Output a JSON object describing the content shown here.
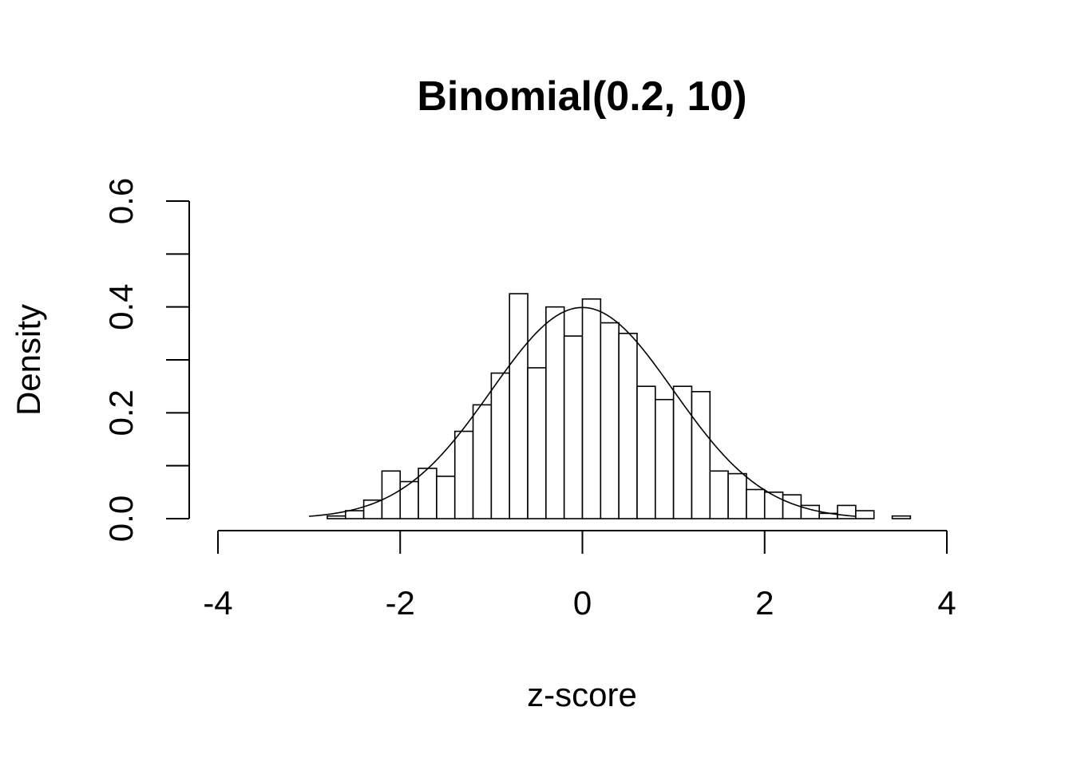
{
  "chart_data": {
    "type": "bar",
    "title": "Binomial(0.2, 10)",
    "xlabel": "z-score",
    "ylabel": "Density",
    "xlim": [
      -4,
      4
    ],
    "ylim": [
      0,
      0.6
    ],
    "x_ticks": [
      -4,
      -2,
      0,
      2,
      4
    ],
    "x_tick_labels": [
      "-4",
      "-2",
      "0",
      "2",
      "4"
    ],
    "y_ticks": [
      0,
      0.1,
      0.2,
      0.3,
      0.4,
      0.5,
      0.6
    ],
    "y_tick_labels": [
      "0.0",
      "",
      "0.2",
      "",
      "0.4",
      "",
      "0.6"
    ],
    "grid": false,
    "bins": {
      "start": -2.8,
      "width": 0.2,
      "densities": [
        0.005,
        0.015,
        0.035,
        0.09,
        0.07,
        0.095,
        0.08,
        0.165,
        0.215,
        0.275,
        0.425,
        0.285,
        0.4,
        0.345,
        0.415,
        0.37,
        0.35,
        0.25,
        0.225,
        0.25,
        0.24,
        0.09,
        0.085,
        0.055,
        0.05,
        0.045,
        0.025,
        0.01,
        0.025,
        0.015,
        0.0,
        0.005
      ]
    },
    "series": [
      {
        "type": "line",
        "function": "standard-normal-density",
        "x_range": [
          -3,
          3
        ]
      }
    ]
  }
}
